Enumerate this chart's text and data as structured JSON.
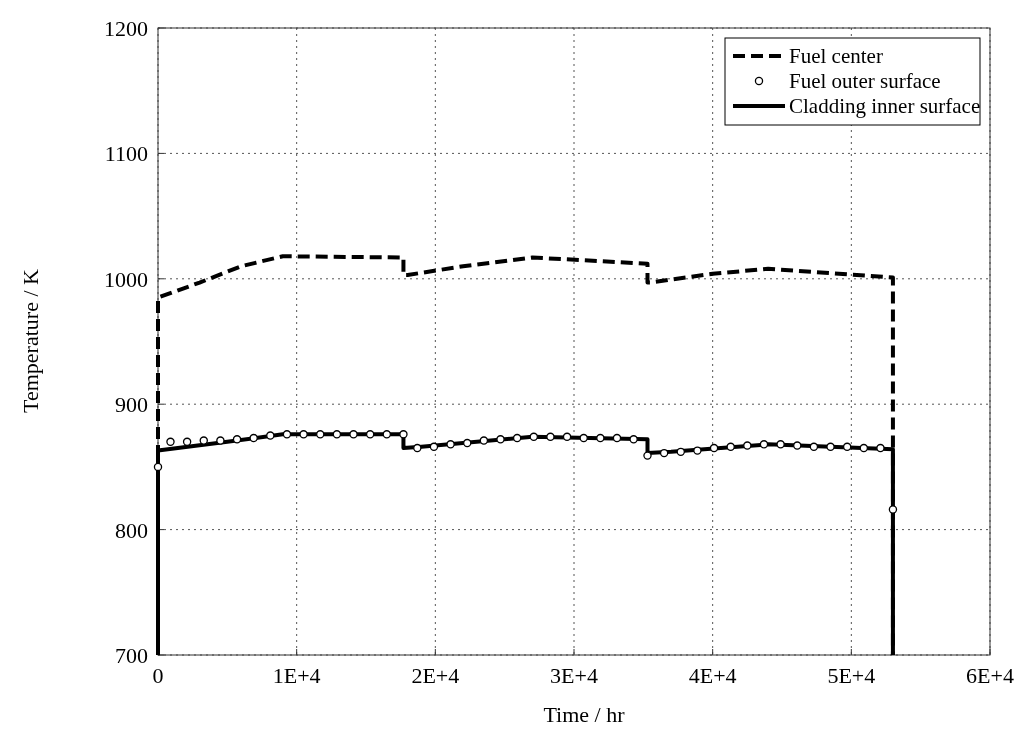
{
  "chart_data": {
    "type": "line",
    "xlabel": "Time / hr",
    "ylabel": "Temperature / K",
    "xlim": [
      0,
      60000
    ],
    "ylim": [
      700,
      1200
    ],
    "xticks": [
      0,
      {
        "value": 10000,
        "label": "1E+4"
      },
      {
        "value": 20000,
        "label": "2E+4"
      },
      {
        "value": 30000,
        "label": "3E+4"
      },
      {
        "value": 40000,
        "label": "4E+4"
      },
      {
        "value": 50000,
        "label": "5E+4"
      },
      {
        "value": 60000,
        "label": "6E+4"
      }
    ],
    "yticks": [
      700,
      800,
      900,
      1000,
      1100,
      1200
    ],
    "grid": true,
    "legend": "top right",
    "series": [
      {
        "name": "Fuel center",
        "line_style": "dashed",
        "color": "#000000",
        "x": [
          0,
          0,
          3000,
          6000,
          9000,
          17700,
          17700,
          18000,
          22000,
          27000,
          35300,
          35300,
          35500,
          40000,
          44000,
          53000,
          53000
        ],
        "values": [
          700,
          985,
          997,
          1010,
          1018,
          1017,
          1003,
          1003,
          1010,
          1017,
          1012,
          997,
          997,
          1004,
          1008,
          1001,
          700
        ]
      },
      {
        "name": "Fuel outer surface",
        "type": "scatter",
        "marker": "circle",
        "color": "#000000",
        "x": [
          0,
          900,
          2100,
          3300,
          4500,
          5700,
          6900,
          8100,
          9300,
          10500,
          11700,
          12900,
          14100,
          15300,
          16500,
          17700,
          18700,
          19900,
          21100,
          22300,
          23500,
          24700,
          25900,
          27100,
          28300,
          29500,
          30700,
          31900,
          33100,
          34300,
          35300,
          36500,
          37700,
          38900,
          40100,
          41300,
          42500,
          43700,
          44900,
          46100,
          47300,
          48500,
          49700,
          50900,
          52100,
          53000
        ],
        "values": [
          850,
          870,
          870,
          871,
          871,
          872,
          873,
          875,
          876,
          876,
          876,
          876,
          876,
          876,
          876,
          876,
          865,
          866,
          868,
          869,
          871,
          872,
          873,
          874,
          874,
          874,
          873,
          873,
          873,
          872,
          859,
          861,
          862,
          863,
          865,
          866,
          867,
          868,
          868,
          867,
          866,
          866,
          866,
          865,
          865,
          816
        ]
      },
      {
        "name": "Cladding inner surface",
        "line_style": "solid",
        "color": "#000000",
        "x": [
          0,
          0,
          5000,
          9000,
          17700,
          17700,
          19000,
          27000,
          35300,
          35300,
          37000,
          44000,
          53000,
          53000
        ],
        "values": [
          700,
          863,
          870,
          876,
          876,
          865,
          866,
          874,
          872,
          861,
          862,
          868,
          864,
          700
        ]
      }
    ]
  }
}
